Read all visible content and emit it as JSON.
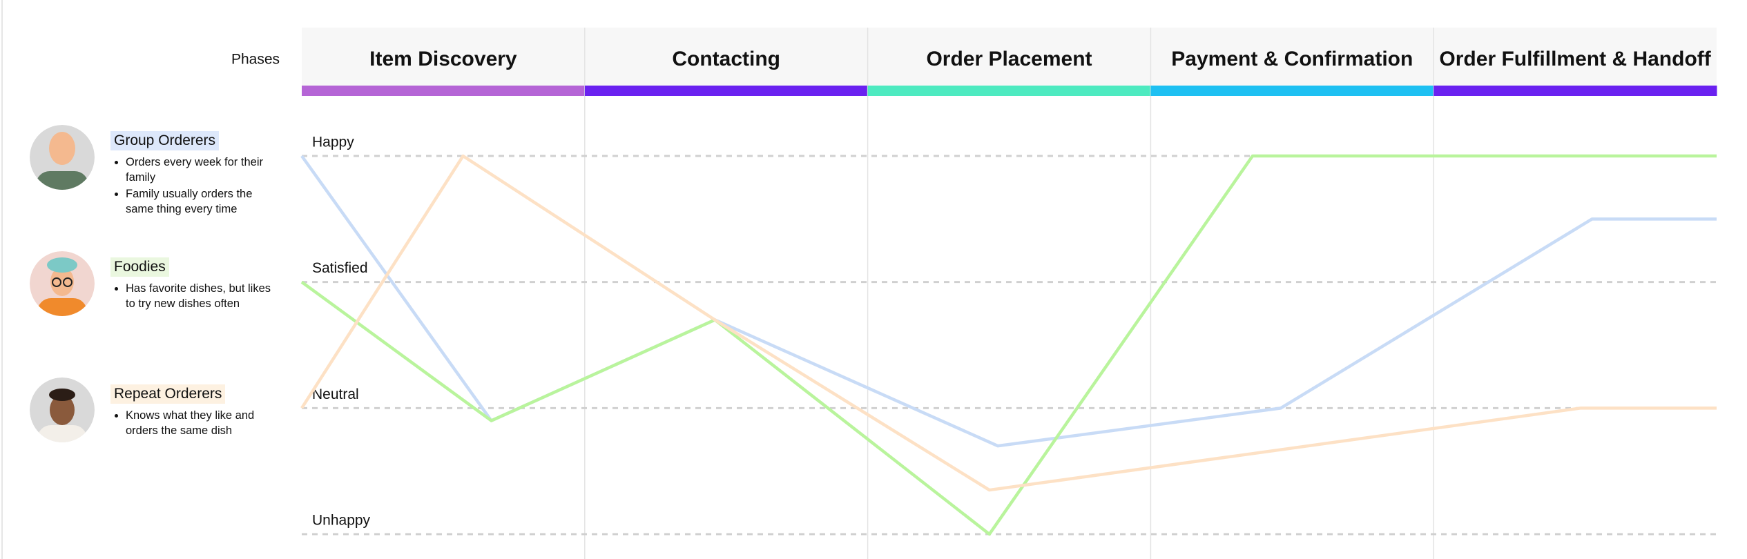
{
  "phases_label": "Phases",
  "phases": [
    {
      "name": "Item Discovery",
      "color": "#b565d6"
    },
    {
      "name": "Contacting",
      "color": "#6a21f0"
    },
    {
      "name": "Order Placement",
      "color": "#4deac0"
    },
    {
      "name": "Payment & Confirmation",
      "color": "#1ec0f2"
    },
    {
      "name": "Order Fulfillment & Handoff",
      "color": "#6a21f0"
    }
  ],
  "personas": [
    {
      "name": "Group Orderers",
      "highlight": "#dde8fb",
      "notes": [
        "Orders every week for their family",
        "Family usually orders the same thing every time"
      ]
    },
    {
      "name": "Foodies",
      "highlight": "#eaf7df",
      "notes": [
        "Has favorite dishes, but likes to try new dishes often"
      ]
    },
    {
      "name": "Repeat Orderers",
      "highlight": "#fdf1e1",
      "notes": [
        "Knows what they like and orders the same dish"
      ]
    }
  ],
  "emotion_chart": {
    "type": "line",
    "xlim": [
      0,
      5
    ],
    "ylim": [
      0,
      3
    ],
    "yticks": [
      {
        "value": 3,
        "label": "Happy"
      },
      {
        "value": 2,
        "label": "Satisfied"
      },
      {
        "value": 1,
        "label": "Neutral"
      },
      {
        "value": 0,
        "label": "Unhappy"
      }
    ],
    "series": [
      {
        "color": "#c8dbf6",
        "x": [
          0,
          0.67,
          1.46,
          2.46,
          3.46,
          4.56,
          5
        ],
        "values": [
          3,
          0.9,
          1.7,
          0.7,
          1,
          2.5,
          2.5
        ]
      },
      {
        "color": "#b9f49c",
        "x": [
          0,
          0.67,
          1.46,
          2.43,
          3.36,
          5
        ],
        "values": [
          2,
          0.9,
          1.7,
          0,
          3,
          3
        ]
      },
      {
        "color": "#fde1c5",
        "x": [
          0,
          0.57,
          1.46,
          2.43,
          4.52,
          5
        ],
        "values": [
          1,
          3,
          1.7,
          0.35,
          1,
          1
        ]
      }
    ]
  }
}
